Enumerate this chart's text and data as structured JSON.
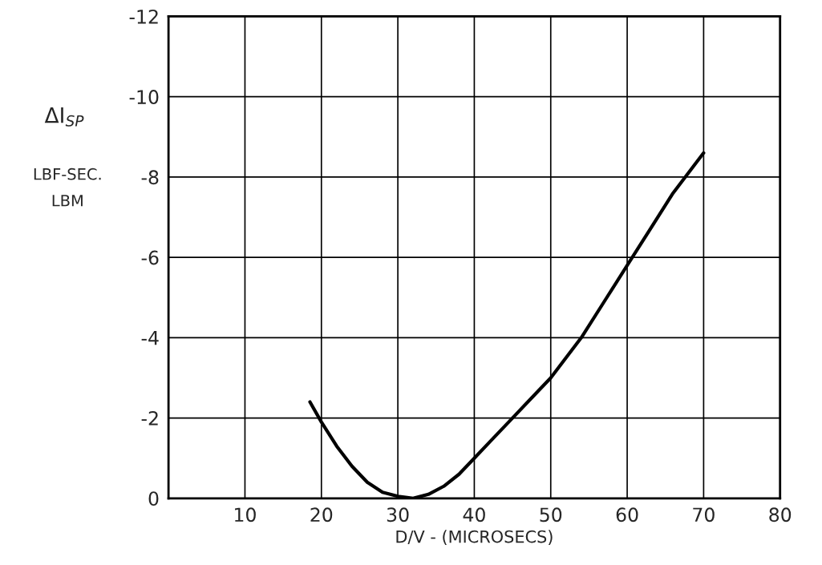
{
  "chart_data": {
    "type": "line",
    "xlabel": "D/V - (MICROSECS)",
    "ylabel": "ΔI$_{SP}$",
    "annotations": [
      "LBF-SEC.",
      "LBM"
    ],
    "series": [
      {
        "color": "#000000",
        "x": [
          18.5,
          20,
          22,
          24,
          26,
          28,
          30,
          32,
          34,
          36,
          38,
          40,
          42,
          45,
          48,
          50,
          54,
          57,
          60,
          63,
          66,
          70
        ],
        "values": [
          -2.4,
          -1.9,
          -1.3,
          -0.8,
          -0.4,
          -0.15,
          -0.05,
          0,
          -0.1,
          -0.3,
          -0.6,
          -1.0,
          -1.4,
          -2.0,
          -2.6,
          -3.0,
          -4.0,
          -4.9,
          -5.8,
          -6.7,
          -7.6,
          -8.6
        ]
      }
    ],
    "xlim": [
      0,
      80
    ],
    "xticks": [
      10,
      20,
      30,
      40,
      50,
      60,
      70,
      80
    ],
    "ylim": [
      0,
      -12
    ],
    "yticks": [
      0,
      -2,
      -4,
      -6,
      -8,
      -10,
      -12
    ],
    "grid": true,
    "line_style": "solid",
    "marker": "none"
  }
}
